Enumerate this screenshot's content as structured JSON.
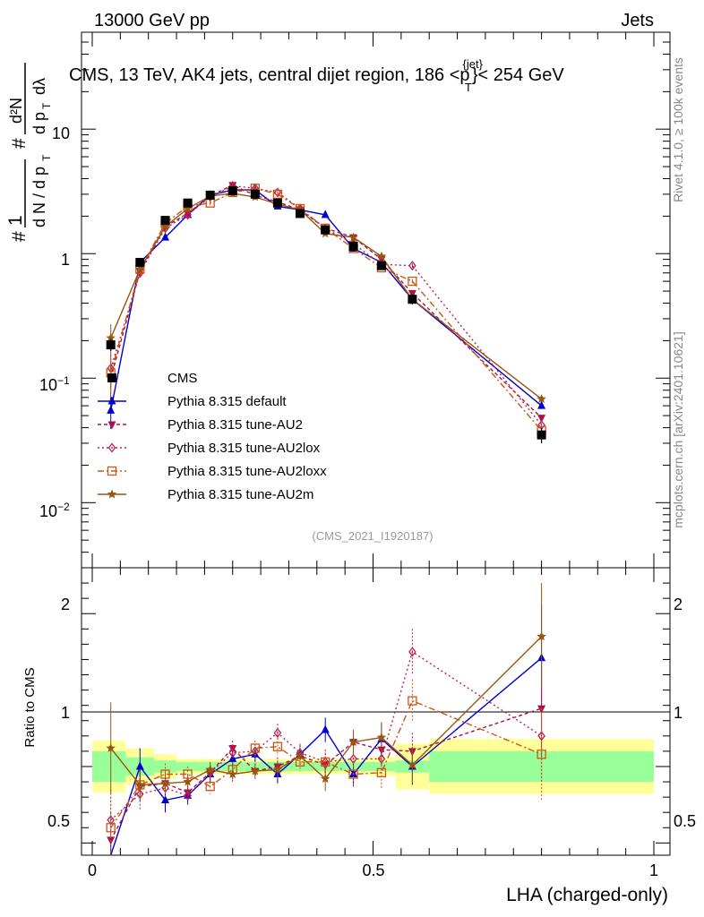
{
  "header": {
    "energy_label": "13000 GeV pp",
    "category_label": "Jets",
    "plot_title": "CMS, 13 TeV, AK4 jets, central dijet region, 186 <p",
    "plot_title_sup": "{jet}",
    "plot_title_sub": "T",
    "plot_title_tail": "}< 254 GeV",
    "analysis_id": "(CMS_2021_I1920187)",
    "rivet_label": "Rivet 4.1.0, ≥ 100k events",
    "mcplots_label": "mcplots.cern.ch [arXiv:2401.10621]"
  },
  "axes": {
    "x_label": "LHA (charged-only)",
    "ratio_y_label": "Ratio to CMS",
    "main_y_label": "1/N dN/dp_T d²N/dp_T dλ",
    "main_y_ticks": [
      "10",
      "1",
      "10",
      "10"
    ],
    "main_y_tick_exps": [
      "",
      "",
      "−1",
      "−2"
    ],
    "ratio_y_ticks": [
      "2",
      "1",
      "0.5"
    ],
    "x_ticks": [
      "0",
      "0.5",
      "1"
    ]
  },
  "legend": {
    "items": [
      {
        "label": "CMS",
        "color": "#000000",
        "marker": "square"
      },
      {
        "label": "Pythia 8.315 default",
        "color": "#0000cc",
        "marker": "triangle-up"
      },
      {
        "label": "Pythia 8.315 tune-AU2",
        "color": "#aa1144",
        "marker": "triangle-down"
      },
      {
        "label": "Pythia 8.315 tune-AU2lox",
        "color": "#bb2255",
        "marker": "diamond"
      },
      {
        "label": "Pythia 8.315 tune-AU2loxx",
        "color": "#cc5511",
        "marker": "open-square"
      },
      {
        "label": "Pythia 8.315 tune-AU2m",
        "color": "#995511",
        "marker": "star"
      }
    ]
  },
  "chart_data": {
    "type": "line",
    "x_range": [
      0,
      1
    ],
    "main_y_range_log": [
      0.003,
      60
    ],
    "ratio_y_range": [
      0.42,
      2.3
    ],
    "x": [
      0.033,
      0.085,
      0.13,
      0.17,
      0.21,
      0.25,
      0.29,
      0.33,
      0.37,
      0.415,
      0.465,
      0.515,
      0.57,
      0.8
    ],
    "x_bin_edges": [
      0.0,
      0.06,
      0.11,
      0.15,
      0.19,
      0.23,
      0.27,
      0.31,
      0.35,
      0.39,
      0.44,
      0.49,
      0.54,
      0.6,
      1.0
    ],
    "data": {
      "name": "CMS",
      "values": [
        0.185,
        0.85,
        1.85,
        2.55,
        2.95,
        3.2,
        3.0,
        2.55,
        2.1,
        1.55,
        1.15,
        0.8,
        0.43,
        0.035
      ],
      "errors": [
        0.02,
        0.05,
        0.08,
        0.1,
        0.1,
        0.1,
        0.1,
        0.1,
        0.08,
        0.07,
        0.06,
        0.05,
        0.04,
        0.005
      ]
    },
    "ratio_band_stat": [
      0.1,
      0.06,
      0.04,
      0.03,
      0.03,
      0.03,
      0.03,
      0.03,
      0.03,
      0.03,
      0.03,
      0.03,
      0.04,
      0.1
    ],
    "ratio_band_total": [
      0.17,
      0.12,
      0.08,
      0.05,
      0.05,
      0.05,
      0.05,
      0.05,
      0.05,
      0.05,
      0.05,
      0.06,
      0.15,
      0.18
    ],
    "series": [
      {
        "name": "Pythia 8.315 default",
        "color": "#0000cc",
        "dash": "",
        "marker": "triangle-up",
        "values": [
          0.055,
          0.85,
          1.35,
          2.05,
          2.95,
          3.25,
          3.25,
          2.4,
          2.25,
          2.05,
          1.1,
          0.85,
          0.43,
          0.06
        ],
        "ratio": [
          0.3,
          1.0,
          0.78,
          0.81,
          0.95,
          1.05,
          1.08,
          0.95,
          1.08,
          1.24,
          0.95,
          1.18,
          1.0,
          1.71
        ],
        "ratio_err": [
          0.22,
          0.12,
          0.08,
          0.06,
          0.05,
          0.05,
          0.05,
          0.06,
          0.06,
          0.08,
          0.08,
          0.1,
          0.12,
          0.35
        ]
      },
      {
        "name": "Pythia 8.315 tune-AU2",
        "color": "#aa1144",
        "dash": "4,3",
        "marker": "triangle-down",
        "values": [
          0.1,
          0.72,
          1.65,
          2.1,
          2.9,
          3.55,
          2.95,
          2.6,
          2.25,
          1.6,
          1.35,
          0.9,
          0.48,
          0.048
        ],
        "ratio": [
          0.52,
          0.87,
          0.89,
          0.83,
          0.96,
          1.12,
          0.97,
          1.0,
          1.07,
          1.01,
          1.16,
          1.11,
          1.1,
          1.38
        ],
        "ratio_err": [
          0.18,
          0.1,
          0.07,
          0.05,
          0.05,
          0.05,
          0.05,
          0.06,
          0.06,
          0.08,
          0.08,
          0.1,
          0.12,
          0.32
        ]
      },
      {
        "name": "Pythia 8.315 tune-AU2lox",
        "color": "#bb2255",
        "dash": "2,3",
        "marker": "diamond",
        "values": [
          0.12,
          0.7,
          1.6,
          2.05,
          2.85,
          3.5,
          3.35,
          3.1,
          2.3,
          1.6,
          1.2,
          0.82,
          0.8,
          0.042
        ],
        "ratio": [
          0.65,
          0.82,
          0.86,
          0.81,
          0.96,
          1.09,
          1.1,
          1.22,
          1.09,
          1.03,
          1.05,
          1.05,
          1.75,
          1.2
        ],
        "ratio_err": [
          0.2,
          0.1,
          0.07,
          0.05,
          0.05,
          0.05,
          0.05,
          0.06,
          0.06,
          0.08,
          0.08,
          0.1,
          0.15,
          0.3
        ]
      },
      {
        "name": "Pythia 8.315 tune-AU2loxx",
        "color": "#cc5511",
        "dash": "7,3,2,3",
        "marker": "open-square",
        "values": [
          0.11,
          0.75,
          1.75,
          2.4,
          2.55,
          3.1,
          3.35,
          3.0,
          2.3,
          1.6,
          1.1,
          0.77,
          0.6,
          0.038
        ],
        "ratio": [
          0.6,
          0.88,
          0.95,
          0.95,
          0.87,
          0.98,
          1.12,
          1.13,
          1.03,
          1.03,
          0.95,
          0.96,
          1.43,
          1.08
        ],
        "ratio_err": [
          0.2,
          0.1,
          0.07,
          0.05,
          0.05,
          0.05,
          0.05,
          0.06,
          0.06,
          0.08,
          0.08,
          0.1,
          0.14,
          0.3
        ]
      },
      {
        "name": "Pythia 8.315 tune-AU2m",
        "color": "#995511",
        "dash": "",
        "marker": "star",
        "values": [
          0.21,
          0.75,
          1.65,
          2.3,
          2.9,
          3.05,
          2.85,
          2.5,
          2.25,
          1.45,
          1.35,
          0.95,
          0.43,
          0.068
        ],
        "ratio": [
          1.12,
          0.88,
          0.89,
          0.9,
          0.98,
          0.95,
          0.97,
          0.98,
          1.07,
          0.92,
          1.16,
          1.19,
          1.01,
          1.85
        ],
        "ratio_err": [
          0.3,
          0.1,
          0.07,
          0.05,
          0.05,
          0.05,
          0.05,
          0.06,
          0.06,
          0.08,
          0.08,
          0.1,
          0.12,
          0.35
        ]
      }
    ]
  }
}
